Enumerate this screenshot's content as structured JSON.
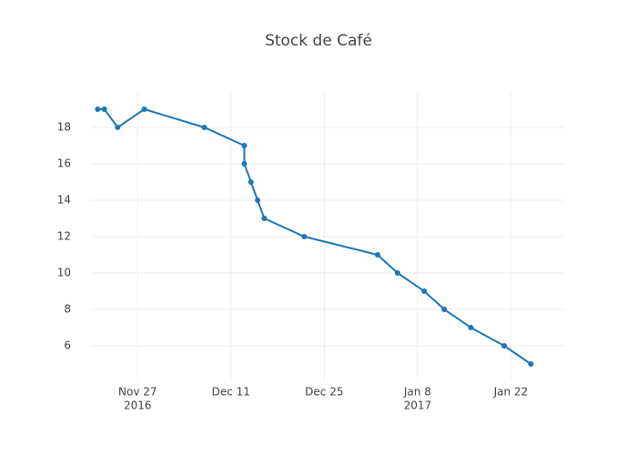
{
  "chart_data": {
    "type": "line",
    "title": "Stock de Café",
    "x": [
      "2016-11-21",
      "2016-11-22",
      "2016-11-24",
      "2016-11-28",
      "2016-12-07",
      "2016-12-13",
      "2016-12-13",
      "2016-12-14",
      "2016-12-15",
      "2016-12-16",
      "2016-12-22",
      "2017-01-02",
      "2017-01-05",
      "2017-01-09",
      "2017-01-12",
      "2017-01-16",
      "2017-01-21",
      "2017-01-25"
    ],
    "series": [
      {
        "name": "Stock",
        "color": "#1f77b4",
        "values": [
          19,
          19,
          18,
          19,
          18,
          17,
          16,
          15,
          14,
          13,
          12,
          11,
          10,
          9,
          8,
          7,
          6,
          5
        ]
      }
    ],
    "xlim": [
      "2016-11-20",
      "2017-01-30"
    ],
    "xticks": [
      {
        "value": "2016-11-27",
        "label": [
          "Nov 27",
          "2016"
        ]
      },
      {
        "value": "2016-12-11",
        "label": [
          "Dec 11"
        ]
      },
      {
        "value": "2016-12-25",
        "label": [
          "Dec 25"
        ]
      },
      {
        "value": "2017-01-08",
        "label": [
          "Jan 8",
          "2017"
        ]
      },
      {
        "value": "2017-01-22",
        "label": [
          "Jan 22"
        ]
      }
    ],
    "ylim": [
      4,
      20
    ],
    "yticks": [
      6,
      8,
      10,
      12,
      14,
      16,
      18
    ],
    "grid": true
  }
}
